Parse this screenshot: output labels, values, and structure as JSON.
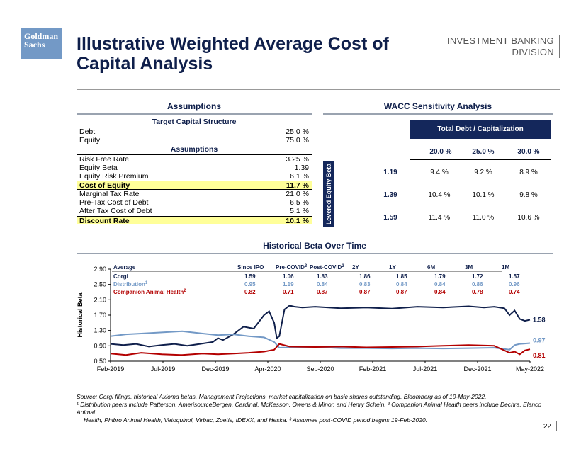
{
  "header": {
    "logo_line1": "Goldman",
    "logo_line2": "Sachs",
    "title": "Illustrative Weighted Average Cost of Capital Analysis",
    "division_line1": "INVESTMENT BANKING",
    "division_line2": "DIVISION"
  },
  "assumptions": {
    "title": "Assumptions",
    "capital_header": "Target Capital Structure",
    "capital_rows": [
      {
        "label": "Debt",
        "value": "25.0 %"
      },
      {
        "label": "Equity",
        "value": "75.0 %"
      }
    ],
    "assump_header": "Assumptions",
    "rows": [
      {
        "label": "Risk Free Rate",
        "value": "3.25 %"
      },
      {
        "label": "Equity Beta",
        "value": "1.39"
      },
      {
        "label": "Equity Risk Premium",
        "value": "6.1 %"
      }
    ],
    "cost_of_equity": {
      "label": "Cost of Equity",
      "value": "11.7 %"
    },
    "rows2": [
      {
        "label": "Marginal Tax Rate",
        "value": "21.0 %"
      },
      {
        "label": "Pre-Tax Cost of Debt",
        "value": "6.5 %"
      },
      {
        "label": "After Tax Cost of Debt",
        "value": "5.1 %"
      }
    ],
    "discount_rate": {
      "label": "Discount Rate",
      "value": "10.1 %"
    }
  },
  "wacc": {
    "title": "WACC Sensitivity Analysis",
    "col_header": "Total Debt / Capitalization",
    "row_header": "Levered Equity Beta",
    "columns": [
      "20.0 %",
      "25.0 %",
      "30.0 %"
    ],
    "rows": [
      {
        "beta": "1.19",
        "values": [
          "9.4 %",
          "9.2 %",
          "8.9 %"
        ]
      },
      {
        "beta": "1.39",
        "values": [
          "10.4 %",
          "10.1 %",
          "9.8 %"
        ]
      },
      {
        "beta": "1.59",
        "values": [
          "11.4 %",
          "11.0 %",
          "10.6 %"
        ]
      }
    ]
  },
  "beta_table": {
    "headers": [
      "Average",
      "Since IPO",
      "Pre-COVID",
      "Post-COVID",
      "2Y",
      "1Y",
      "6M",
      "3M",
      "1M"
    ],
    "header_sup": {
      "pre": "3",
      "post": "3"
    },
    "rows": [
      {
        "name": "Corgi",
        "color": "#0f1f4b",
        "sup": "",
        "values": [
          "1.59",
          "1.06",
          "1.83",
          "1.86",
          "1.85",
          "1.79",
          "1.72",
          "1.57"
        ]
      },
      {
        "name": "Distribution",
        "color": "#7399c6",
        "sup": "1",
        "values": [
          "0.95",
          "1.19",
          "0.84",
          "0.83",
          "0.84",
          "0.84",
          "0.86",
          "0.96"
        ]
      },
      {
        "name": "Companion Animal Health",
        "color": "#b30000",
        "sup": "2",
        "values": [
          "0.82",
          "0.71",
          "0.87",
          "0.87",
          "0.87",
          "0.84",
          "0.78",
          "0.74"
        ]
      }
    ]
  },
  "chart_data": {
    "type": "line",
    "title": "Historical Beta Over Time",
    "ylabel": "Historical Beta",
    "xlabel": "",
    "ylim": [
      0.5,
      2.9
    ],
    "yticks": [
      "0.50",
      "0.90",
      "1.30",
      "1.70",
      "2.10",
      "2.50",
      "2.90"
    ],
    "xticks": [
      "Feb-2019",
      "Jul-2019",
      "Dec-2019",
      "Apr-2020",
      "Sep-2020",
      "Feb-2021",
      "Jul-2021",
      "Dec-2021",
      "May-2022"
    ],
    "end_labels": [
      "1.58",
      "0.97",
      "0.81"
    ],
    "series": [
      {
        "name": "Corgi",
        "color": "#0f1f4b",
        "x": [
          0,
          0.25,
          0.5,
          0.75,
          1,
          1.25,
          1.5,
          1.75,
          2,
          2.1,
          2.2,
          2.4,
          2.6,
          2.8,
          3,
          3.1,
          3.2,
          3.25,
          3.3,
          3.4,
          3.5,
          3.6,
          3.75,
          4,
          4.5,
          5,
          5.5,
          6,
          6.5,
          7,
          7.3,
          7.5,
          7.7,
          7.8,
          7.9,
          8,
          8.1,
          8.2
        ],
        "y": [
          0.95,
          0.92,
          0.95,
          0.88,
          0.92,
          0.95,
          0.9,
          0.95,
          1.0,
          1.1,
          1.05,
          1.2,
          1.4,
          1.35,
          1.7,
          1.8,
          1.5,
          1.1,
          1.15,
          1.85,
          1.95,
          1.92,
          1.9,
          1.92,
          1.88,
          1.9,
          1.87,
          1.92,
          1.9,
          1.93,
          1.9,
          1.92,
          1.88,
          1.7,
          1.82,
          1.6,
          1.55,
          1.58
        ]
      },
      {
        "name": "Distribution",
        "color": "#7399c6",
        "x": [
          0,
          0.3,
          0.6,
          1,
          1.4,
          1.8,
          2.1,
          2.4,
          2.7,
          3.0,
          3.2,
          3.3,
          3.5,
          4,
          4.5,
          5,
          5.5,
          6,
          6.5,
          7,
          7.5,
          7.8,
          7.9,
          8,
          8.1,
          8.2
        ],
        "y": [
          1.15,
          1.2,
          1.22,
          1.25,
          1.28,
          1.22,
          1.18,
          1.2,
          1.15,
          1.12,
          1.0,
          0.85,
          0.86,
          0.87,
          0.84,
          0.84,
          0.83,
          0.84,
          0.83,
          0.84,
          0.85,
          0.8,
          0.92,
          0.95,
          0.96,
          0.97
        ]
      },
      {
        "name": "Companion Animal Health",
        "color": "#b30000",
        "x": [
          0,
          0.3,
          0.6,
          1,
          1.4,
          1.8,
          2.1,
          2.4,
          2.7,
          3.0,
          3.2,
          3.3,
          3.5,
          4,
          4.5,
          5,
          5.5,
          6,
          6.5,
          7,
          7.5,
          7.8,
          7.9,
          8,
          8.1,
          8.2
        ],
        "y": [
          0.7,
          0.66,
          0.72,
          0.68,
          0.66,
          0.7,
          0.68,
          0.7,
          0.72,
          0.75,
          0.8,
          0.95,
          0.88,
          0.87,
          0.88,
          0.86,
          0.87,
          0.88,
          0.9,
          0.92,
          0.9,
          0.72,
          0.75,
          0.68,
          0.78,
          0.81
        ]
      }
    ]
  },
  "footnotes": {
    "source": "Source: Corgi filings, historical Axioma betas, Management Projections, market capitalization on basic shares outstanding, Bloomberg as of 19-May-2022.",
    "note1": "¹ Distribution peers include Patterson, AmerisourceBergen, Cardinal, McKesson, Owens & Minor, and Henry Schein. ² Companion Animal Health peers include Dechra, Elanco Animal",
    "note1b": "Health, Phibro Animal Health, Vetoquinol, Virbac, Zoetis, IDEXX, and Heska. ³ Assumes post-COVID period begins 19-Feb-2020."
  },
  "page_number": "22"
}
